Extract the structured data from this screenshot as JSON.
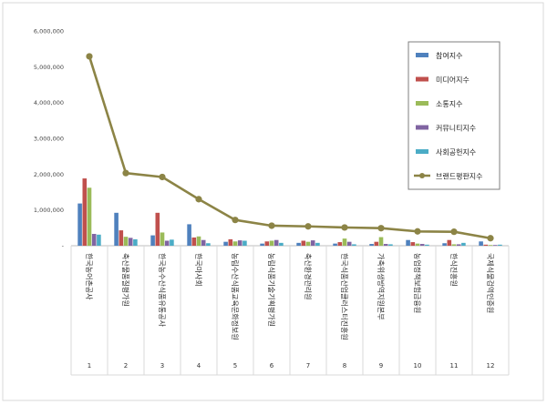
{
  "chart_data": {
    "type": "bar",
    "categories": [
      "한국농어촌공사",
      "축산물품질평가원",
      "한국농수산식품유통공사",
      "한국마사회",
      "농림수산식품교육문화정보원",
      "농림식품기술기획평가원",
      "축산환경관리원",
      "한국식품산업클러스터진흥원",
      "가축위생방역지원본부",
      "농업정책보험금융원",
      "한식진흥원",
      "국제식물검역인증원"
    ],
    "x_numbers": [
      "1",
      "2",
      "3",
      "4",
      "5",
      "6",
      "7",
      "8",
      "9",
      "10",
      "11",
      "12"
    ],
    "series": [
      {
        "name": "참여지수",
        "color": "#4f81bd",
        "values": [
          1180000,
          920000,
          290000,
          600000,
          110000,
          60000,
          80000,
          60000,
          50000,
          160000,
          70000,
          120000
        ]
      },
      {
        "name": "미디어지수",
        "color": "#c0504d",
        "values": [
          1880000,
          430000,
          920000,
          230000,
          180000,
          120000,
          140000,
          100000,
          110000,
          100000,
          160000,
          30000
        ]
      },
      {
        "name": "소통지수",
        "color": "#9bbb59",
        "values": [
          1620000,
          250000,
          370000,
          260000,
          120000,
          140000,
          110000,
          200000,
          240000,
          60000,
          40000,
          20000
        ]
      },
      {
        "name": "커뮤니티지수",
        "color": "#8064a2",
        "values": [
          330000,
          220000,
          140000,
          160000,
          150000,
          160000,
          150000,
          110000,
          50000,
          50000,
          40000,
          20000
        ]
      },
      {
        "name": "사회공헌지수",
        "color": "#4bacc6",
        "values": [
          310000,
          180000,
          170000,
          70000,
          140000,
          80000,
          80000,
          40000,
          40000,
          30000,
          80000,
          30000
        ]
      }
    ],
    "line_series": {
      "name": "브랜드평판지수",
      "color": "#8c8446",
      "values": [
        5290000,
        2030000,
        1920000,
        1300000,
        720000,
        560000,
        540000,
        510000,
        490000,
        400000,
        390000,
        210000
      ]
    },
    "yticks": [
      "-",
      "1,000,000",
      "2,000,000",
      "3,000,000",
      "4,000,000",
      "5,000,000",
      "6,000,000"
    ],
    "ylim": [
      0,
      6000000
    ],
    "legend_position": "top-right",
    "grid": false
  }
}
